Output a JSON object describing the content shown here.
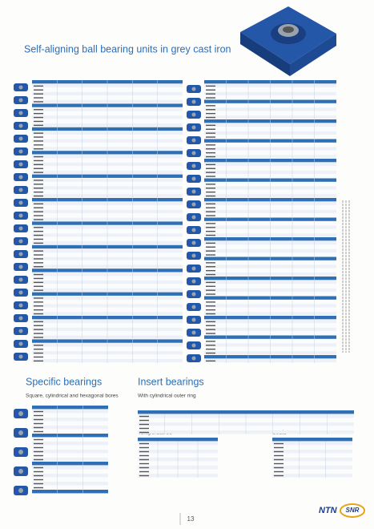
{
  "header": {
    "title": "Self-aligning ball bearing units in grey cast iron"
  },
  "specific_bearings": {
    "title": "Specific bearings",
    "subtitle": "Square, cylindrical and hexagonal bores"
  },
  "insert_bearings": {
    "title": "Insert bearings",
    "subtitle": "With cylindrical outer ring",
    "temperatures": "Temperatures",
    "seals": "Seals"
  },
  "footer": {
    "page": "13",
    "brand_1": "NTN",
    "brand_2": "SNR"
  }
}
